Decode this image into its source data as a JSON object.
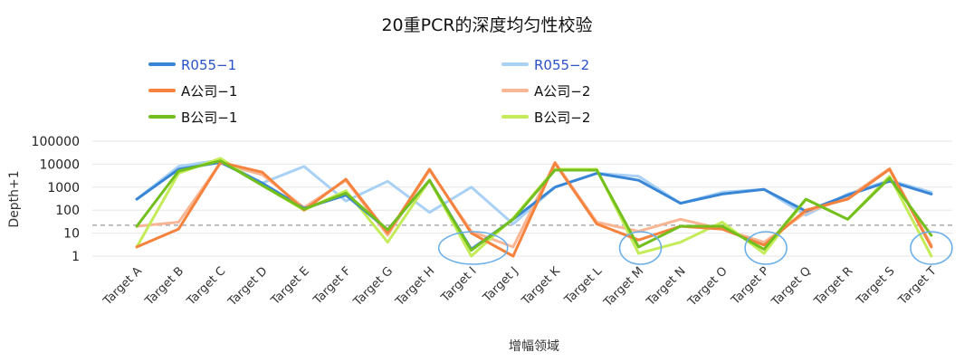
{
  "chart_data": {
    "type": "line",
    "title": "20重PCR的深度均匀性校验",
    "xlabel": "增幅领域",
    "ylabel": "Depth+1",
    "yscale": "log",
    "ylim": [
      1,
      100000
    ],
    "yticks": [
      "100000",
      "10000",
      "1000",
      "100",
      "10",
      "1"
    ],
    "ytick_values": [
      100000,
      10000,
      1000,
      100,
      10,
      1
    ],
    "grid": "horizontal",
    "legend_position": "top",
    "reference_line": {
      "value": 22,
      "style": "dashed",
      "color": "#999999"
    },
    "highlight_circles": [
      "Target I",
      "Target M",
      "Target P",
      "Target T"
    ],
    "highlight_color": "#6aaee8",
    "categories": [
      "Target A",
      "Target B",
      "Target C",
      "Target D",
      "Target E",
      "Target F",
      "Target G",
      "Target H",
      "Target I",
      "Target J",
      "Target K",
      "Target L",
      "Target M",
      "Target N",
      "Target O",
      "Target P",
      "Target Q",
      "Target R",
      "Target S",
      "Target T"
    ],
    "series": [
      {
        "name": "R055−1",
        "color": "#3a86d6",
        "label_color": "#2a52c8",
        "values": [
          300,
          6000,
          12000,
          1500,
          120,
          450,
          14,
          2000,
          2,
          40,
          1000,
          4000,
          2000,
          200,
          500,
          800,
          90,
          450,
          1800,
          500
        ]
      },
      {
        "name": "A公司−1",
        "color": "#f5823d",
        "label_color": "#111111",
        "values": [
          2.5,
          15,
          12000,
          4500,
          100,
          2200,
          10,
          6000,
          10,
          1,
          11000,
          25,
          5,
          20,
          15,
          3,
          100,
          300,
          6000,
          2.5
        ]
      },
      {
        "name": "B公司−1",
        "color": "#72bf1d",
        "label_color": "#111111",
        "values": [
          20,
          5000,
          14000,
          1200,
          110,
          550,
          14,
          2000,
          1.8,
          40,
          5500,
          5500,
          2.5,
          20,
          20,
          2,
          300,
          40,
          2500,
          8
        ]
      },
      {
        "name": "R055−2",
        "color": "#a8d1f5",
        "label_color": "#2a52c8",
        "values": [
          300,
          8000,
          15000,
          1500,
          8000,
          250,
          1800,
          80,
          1000,
          25,
          1000,
          4000,
          3000,
          200,
          600,
          800,
          60,
          500,
          2000,
          600
        ]
      },
      {
        "name": "A公司−2",
        "color": "#f9b694",
        "label_color": "#111111",
        "values": [
          20,
          30,
          11000,
          3500,
          130,
          2000,
          8,
          5500,
          12,
          2.5,
          12000,
          30,
          12,
          40,
          15,
          4,
          80,
          350,
          6500,
          3
        ]
      },
      {
        "name": "B公司−2",
        "color": "#c4ec58",
        "label_color": "#111111",
        "values": [
          2.5,
          4000,
          18000,
          1200,
          100,
          700,
          4,
          2000,
          1,
          45,
          6000,
          6000,
          1.3,
          4,
          30,
          1.3,
          300,
          40,
          3000,
          1
        ]
      }
    ]
  }
}
